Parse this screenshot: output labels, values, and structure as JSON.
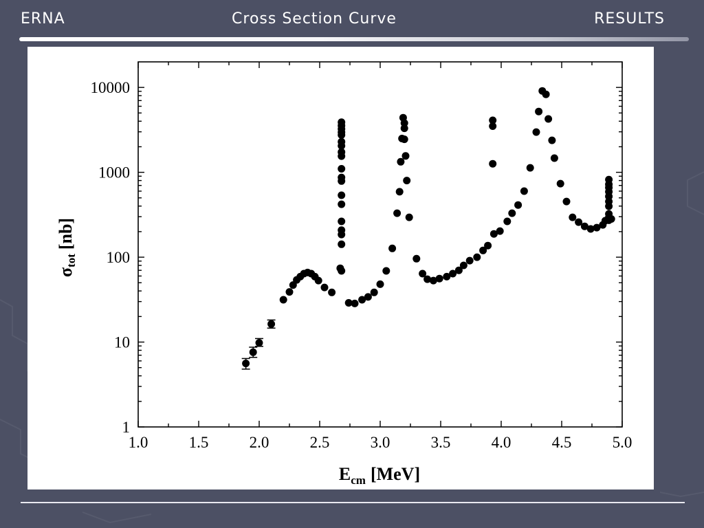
{
  "header": {
    "left": "ERNA",
    "title": "Cross Section Curve",
    "right": "RESULTS"
  },
  "colors": {
    "background": "#4c5064",
    "header_text": "#ffffff",
    "panel": "#ffffff",
    "marker": "#000000"
  },
  "chart_data": {
    "type": "scatter",
    "x_scale": "linear",
    "y_scale": "log",
    "xlim": [
      1.0,
      5.0
    ],
    "ylim": [
      1,
      20000
    ],
    "grid": false,
    "xlabel": {
      "symbol": "E",
      "subscript": "cm",
      "unit": "[MeV]"
    },
    "ylabel": {
      "symbol": "σ",
      "subscript": "tot",
      "unit": "[nb]"
    },
    "x_ticks": [
      "1.0",
      "1.5",
      "2.0",
      "2.5",
      "3.0",
      "3.5",
      "4.0",
      "4.5",
      "5.0"
    ],
    "y_ticks": [
      "1",
      "10",
      "100",
      "1000",
      "10000"
    ],
    "series": [
      {
        "points": [
          [
            1.89,
            5.6
          ],
          [
            1.95,
            7.6
          ],
          [
            2.0,
            9.8
          ],
          [
            2.1,
            16.3
          ],
          [
            2.2,
            31.5
          ],
          [
            2.25,
            39
          ],
          [
            2.28,
            47
          ],
          [
            2.31,
            54
          ],
          [
            2.34,
            59
          ],
          [
            2.37,
            64
          ],
          [
            2.4,
            66
          ],
          [
            2.43,
            64
          ],
          [
            2.46,
            59
          ],
          [
            2.49,
            53
          ],
          [
            2.54,
            44
          ],
          [
            2.6,
            38.5
          ],
          [
            2.67,
            74
          ],
          [
            2.68,
            69
          ],
          [
            2.68,
            142
          ],
          [
            2.68,
            185
          ],
          [
            2.68,
            208
          ],
          [
            2.68,
            264
          ],
          [
            2.68,
            420
          ],
          [
            2.68,
            537
          ],
          [
            2.68,
            790
          ],
          [
            2.68,
            870
          ],
          [
            2.68,
            1100
          ],
          [
            2.68,
            1550
          ],
          [
            2.68,
            1730
          ],
          [
            2.68,
            2050
          ],
          [
            2.68,
            2290
          ],
          [
            2.68,
            2750
          ],
          [
            2.68,
            2960
          ],
          [
            2.68,
            3240
          ],
          [
            2.68,
            3550
          ],
          [
            2.68,
            3890
          ],
          [
            2.74,
            29
          ],
          [
            2.79,
            28.5
          ],
          [
            2.85,
            31.5
          ],
          [
            2.9,
            34
          ],
          [
            2.95,
            38.5
          ],
          [
            3.0,
            48
          ],
          [
            3.05,
            69
          ],
          [
            3.1,
            127
          ],
          [
            3.14,
            330
          ],
          [
            3.16,
            590
          ],
          [
            3.17,
            1330
          ],
          [
            3.18,
            2500
          ],
          [
            3.19,
            4400
          ],
          [
            3.2,
            3800
          ],
          [
            3.2,
            3300
          ],
          [
            3.2,
            2450
          ],
          [
            3.21,
            1560
          ],
          [
            3.22,
            800
          ],
          [
            3.24,
            295
          ],
          [
            3.3,
            96
          ],
          [
            3.35,
            64
          ],
          [
            3.39,
            55
          ],
          [
            3.44,
            53
          ],
          [
            3.49,
            56
          ],
          [
            3.55,
            59
          ],
          [
            3.6,
            64
          ],
          [
            3.65,
            70
          ],
          [
            3.69,
            80
          ],
          [
            3.74,
            91
          ],
          [
            3.8,
            100
          ],
          [
            3.85,
            120
          ],
          [
            3.89,
            137
          ],
          [
            3.93,
            4100
          ],
          [
            3.93,
            3500
          ],
          [
            3.93,
            1260
          ],
          [
            3.94,
            188
          ],
          [
            3.99,
            203
          ],
          [
            4.05,
            264
          ],
          [
            4.09,
            330
          ],
          [
            4.14,
            412
          ],
          [
            4.19,
            600
          ],
          [
            4.24,
            1130
          ],
          [
            4.29,
            2980
          ],
          [
            4.31,
            5200
          ],
          [
            4.34,
            9100
          ],
          [
            4.37,
            8300
          ],
          [
            4.39,
            4250
          ],
          [
            4.42,
            2380
          ],
          [
            4.44,
            1470
          ],
          [
            4.49,
            735
          ],
          [
            4.54,
            453
          ],
          [
            4.59,
            295
          ],
          [
            4.64,
            259
          ],
          [
            4.69,
            231
          ],
          [
            4.74,
            215
          ],
          [
            4.79,
            223
          ],
          [
            4.84,
            240
          ],
          [
            4.86,
            269
          ],
          [
            4.89,
            820
          ],
          [
            4.89,
            720
          ],
          [
            4.89,
            660
          ],
          [
            4.89,
            590
          ],
          [
            4.89,
            520
          ],
          [
            4.89,
            453
          ],
          [
            4.89,
            398
          ],
          [
            4.89,
            324
          ],
          [
            4.89,
            295
          ],
          [
            4.89,
            272
          ],
          [
            4.91,
            282
          ]
        ],
        "error_bars": [
          {
            "x": 1.89,
            "low": 4.8,
            "high": 6.4
          },
          {
            "x": 1.95,
            "low": 6.6,
            "high": 8.7
          },
          {
            "x": 2.0,
            "low": 8.9,
            "high": 11.0
          },
          {
            "x": 2.1,
            "low": 14.6,
            "high": 18.2
          }
        ]
      }
    ]
  }
}
